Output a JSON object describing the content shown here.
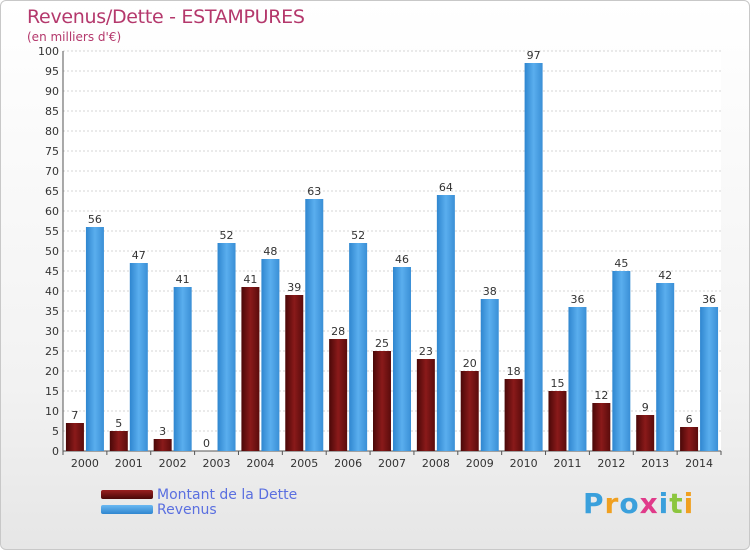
{
  "header": {
    "title": "Revenus/Dette - ESTAMPURES",
    "subtitle": "(en milliers d'€)"
  },
  "legend": {
    "items": [
      {
        "label": "Montant de la Dette",
        "color": "#7a1212"
      },
      {
        "label": "Revenus",
        "color": "#4a9fe3"
      }
    ]
  },
  "brand": {
    "text": "Proxiti",
    "colors": [
      "#3aa0dc",
      "#f0a020",
      "#3aa0dc",
      "#e03a8a",
      "#3aa0dc",
      "#8cc63f",
      "#f0a020"
    ]
  },
  "chart_data": {
    "type": "bar",
    "title": "Revenus/Dette - ESTAMPURES",
    "subtitle": "(en milliers d'€)",
    "categories": [
      "2000",
      "2001",
      "2002",
      "2003",
      "2004",
      "2005",
      "2006",
      "2007",
      "2008",
      "2009",
      "2010",
      "2011",
      "2012",
      "2013",
      "2014"
    ],
    "series": [
      {
        "name": "Montant de la Dette",
        "color": "#7a1212",
        "values": [
          7,
          5,
          3,
          0,
          41,
          39,
          28,
          25,
          23,
          20,
          18,
          15,
          12,
          9,
          6
        ]
      },
      {
        "name": "Revenus",
        "color": "#4a9fe3",
        "values": [
          56,
          47,
          41,
          52,
          48,
          63,
          52,
          46,
          64,
          38,
          97,
          36,
          45,
          42,
          36
        ]
      }
    ],
    "ylim": [
      0,
      100
    ],
    "ytick_step": 5,
    "grid": true,
    "legend_position": "bottom-left"
  }
}
